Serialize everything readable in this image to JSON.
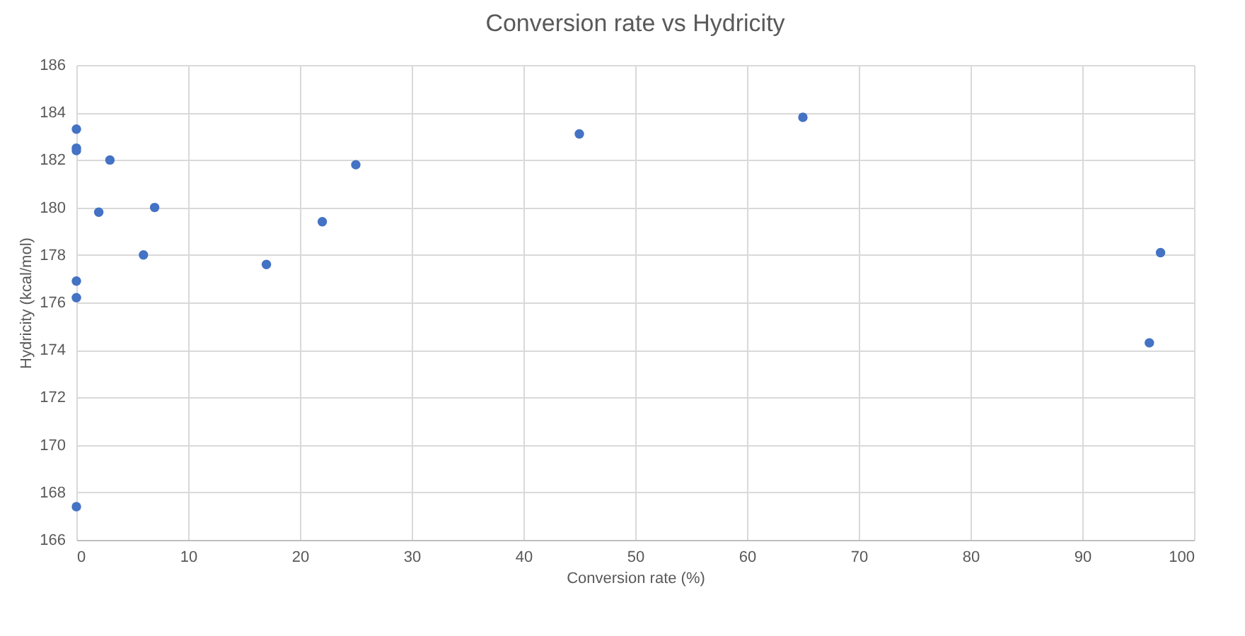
{
  "chart_data": {
    "type": "scatter",
    "title": "Conversion rate vs Hydricity",
    "xlabel": "Conversion rate (%)",
    "ylabel": "Hydricity (kcal/mol)",
    "x": [
      0,
      0,
      0,
      0,
      0,
      0,
      2,
      3,
      6,
      7,
      17,
      22,
      25,
      45,
      65,
      96,
      97
    ],
    "series": [
      {
        "color": "#4472c4",
        "values": [
          183.3,
          182.5,
          182.4,
          176.9,
          176.2,
          167.4,
          179.8,
          182.0,
          178.0,
          180.0,
          177.6,
          179.4,
          181.8,
          183.1,
          183.8,
          174.3,
          178.1
        ]
      }
    ],
    "xlim": [
      0,
      100
    ],
    "xticks": [
      0,
      10,
      20,
      30,
      40,
      50,
      60,
      70,
      80,
      90,
      100
    ],
    "ylim": [
      166,
      186
    ],
    "yticks": [
      166,
      168,
      170,
      172,
      174,
      176,
      178,
      180,
      182,
      184,
      186
    ],
    "grid": true,
    "marker": "circle",
    "legend": false
  }
}
